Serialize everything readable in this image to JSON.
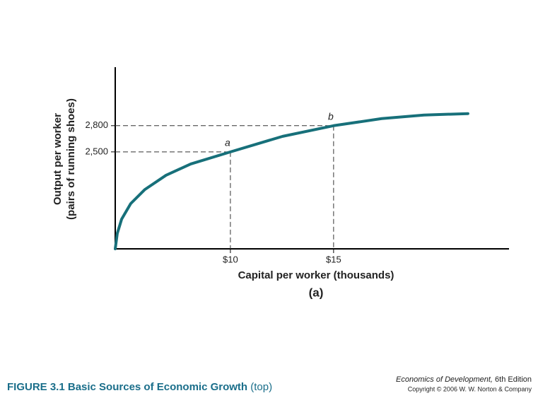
{
  "chart_data": {
    "type": "line",
    "x_label": "Capital per worker (thousands)",
    "y_label": [
      "Output per worker",
      "(pairs of running shoes)"
    ],
    "panel_label": "(a)",
    "xlim": [
      4.42,
      23.5
    ],
    "ylim": [
      1390,
      3470
    ],
    "xticks": [
      {
        "value": 10,
        "label": "$10"
      },
      {
        "value": 15,
        "label": "$15"
      }
    ],
    "yticks": [
      {
        "value": 2500,
        "label": "2,500"
      },
      {
        "value": 2800,
        "label": "2,800"
      }
    ],
    "color": "#17707a",
    "x": [
      4.42,
      4.52,
      4.73,
      5.17,
      5.86,
      6.88,
      8.08,
      10,
      12.53,
      15,
      17.33,
      19.38,
      21.51
    ],
    "values": [
      1390,
      1567,
      1730,
      1908,
      2070,
      2232,
      2362,
      2500,
      2678,
      2800,
      2881,
      2922,
      2938
    ],
    "points": [
      {
        "label": "a",
        "x": 10,
        "y": 2500
      },
      {
        "label": "b",
        "x": 15,
        "y": 2800
      }
    ]
  },
  "footer": {
    "figure_number": "FIGURE 3.1",
    "figure_title": "Basic Sources of Economic Growth",
    "figure_note": "(top)",
    "book_title": "Economics of Development,",
    "edition": "6th Edition",
    "copyright": "Copyright © 2006 W. W. Norton & Company"
  }
}
